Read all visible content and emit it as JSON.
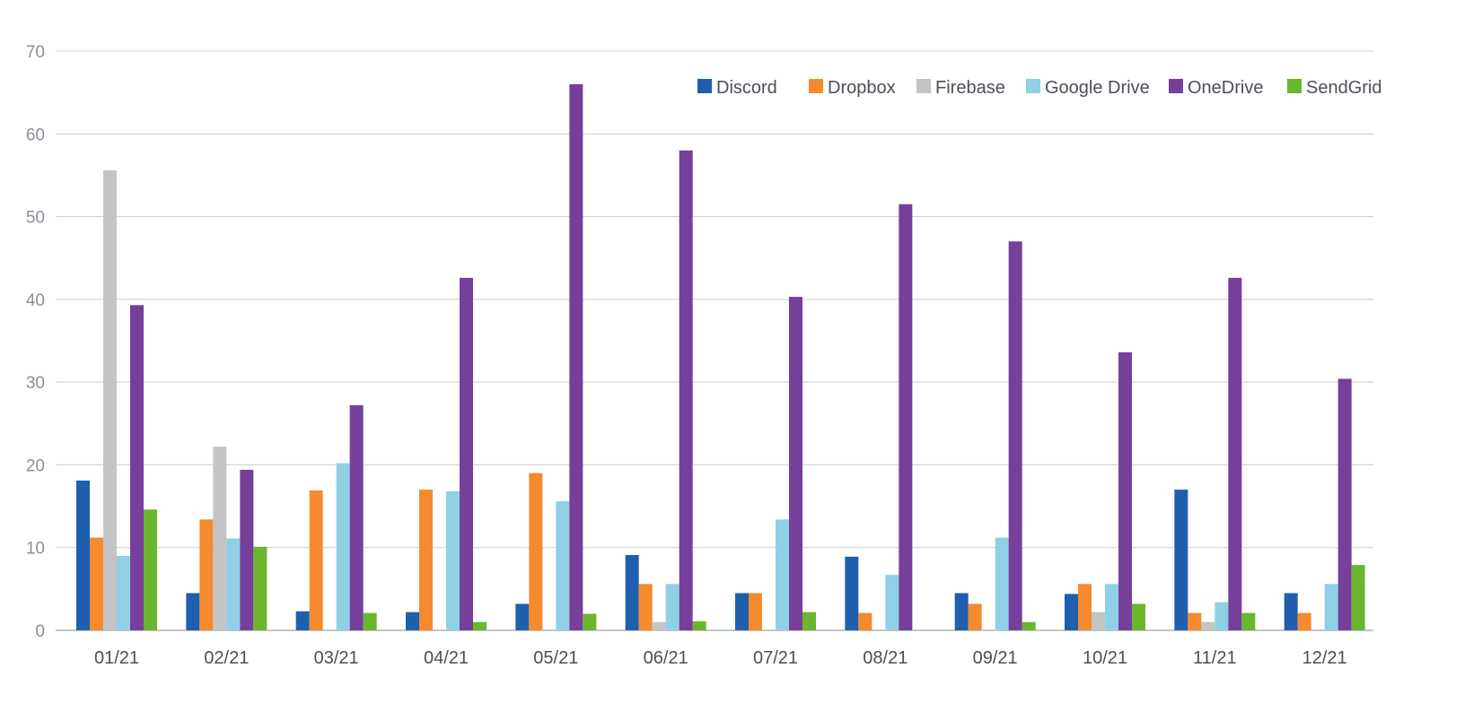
{
  "chart_data": {
    "type": "bar",
    "title": "",
    "xlabel": "",
    "ylabel": "",
    "ylim": [
      0,
      70
    ],
    "yticks": [
      0,
      10,
      20,
      30,
      40,
      50,
      60,
      70
    ],
    "grid": true,
    "legend": "top-right",
    "categories": [
      "01/21",
      "02/21",
      "03/21",
      "04/21",
      "05/21",
      "06/21",
      "07/21",
      "08/21",
      "09/21",
      "10/21",
      "11/21",
      "12/21"
    ],
    "series": [
      {
        "name": "Discord",
        "color": "#1f5fad",
        "values": [
          18.1,
          4.5,
          2.3,
          2.2,
          3.2,
          9.1,
          4.5,
          8.9,
          4.5,
          4.4,
          17.0,
          4.5
        ]
      },
      {
        "name": "Dropbox",
        "color": "#f58a2f",
        "values": [
          11.2,
          13.4,
          16.9,
          17.0,
          19.0,
          5.6,
          4.5,
          2.1,
          3.2,
          5.6,
          2.1,
          2.1
        ]
      },
      {
        "name": "Firebase",
        "color": "#c4c4c4",
        "values": [
          55.6,
          22.2,
          0,
          0,
          0,
          1.0,
          0,
          0,
          0,
          2.2,
          1.0,
          0
        ]
      },
      {
        "name": "Google Drive",
        "color": "#8fd0e6",
        "values": [
          9.0,
          11.1,
          20.2,
          16.8,
          15.6,
          5.6,
          13.4,
          6.7,
          11.2,
          5.6,
          3.4,
          5.6
        ]
      },
      {
        "name": "OneDrive",
        "color": "#763f9b",
        "values": [
          39.3,
          19.4,
          27.2,
          42.6,
          66.0,
          58.0,
          40.3,
          51.5,
          47.0,
          33.6,
          42.6,
          30.4
        ]
      },
      {
        "name": "SendGrid",
        "color": "#6cb62e",
        "values": [
          14.6,
          10.1,
          2.1,
          1.0,
          2.0,
          1.1,
          2.2,
          0,
          1.0,
          3.2,
          2.1,
          7.9
        ]
      }
    ]
  }
}
